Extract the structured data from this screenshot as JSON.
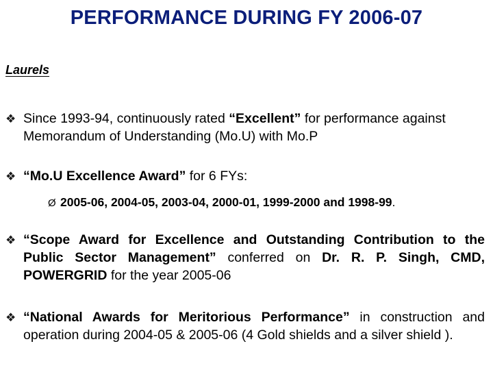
{
  "title": "PERFORMANCE DURING FY 2006-07",
  "subtitle": "Laurels",
  "bullet_glyph": "❖",
  "sub_bullet_glyph": "Ø",
  "items": [
    {
      "p1": "Since 1993-94, continuously rated ",
      "b1": "“Excellent”",
      "p2": " for performance against Memorandum of Understanding (Mo.U) with Mo.P"
    },
    {
      "b1": "“Mo.U Excellence Award”",
      "p1": " for 6 FYs:",
      "sub": "2005-06, 2004-05, 2003-04, 2000-01, 1999-2000 and 1998-99",
      "sub_tail": "."
    },
    {
      "b1": "“Scope Award for Excellence and Outstanding Contribution to the Public Sector Management”",
      "p1": " conferred on ",
      "b2": "Dr. R. P. Singh, CMD, POWERGRID",
      "p2": " for the year 2005-06"
    },
    {
      "b1": "“National Awards for Meritorious Performance”",
      "p1": " in construction and operation during 2004-05 & 2005-06 (4 Gold shields and a silver shield )."
    }
  ]
}
